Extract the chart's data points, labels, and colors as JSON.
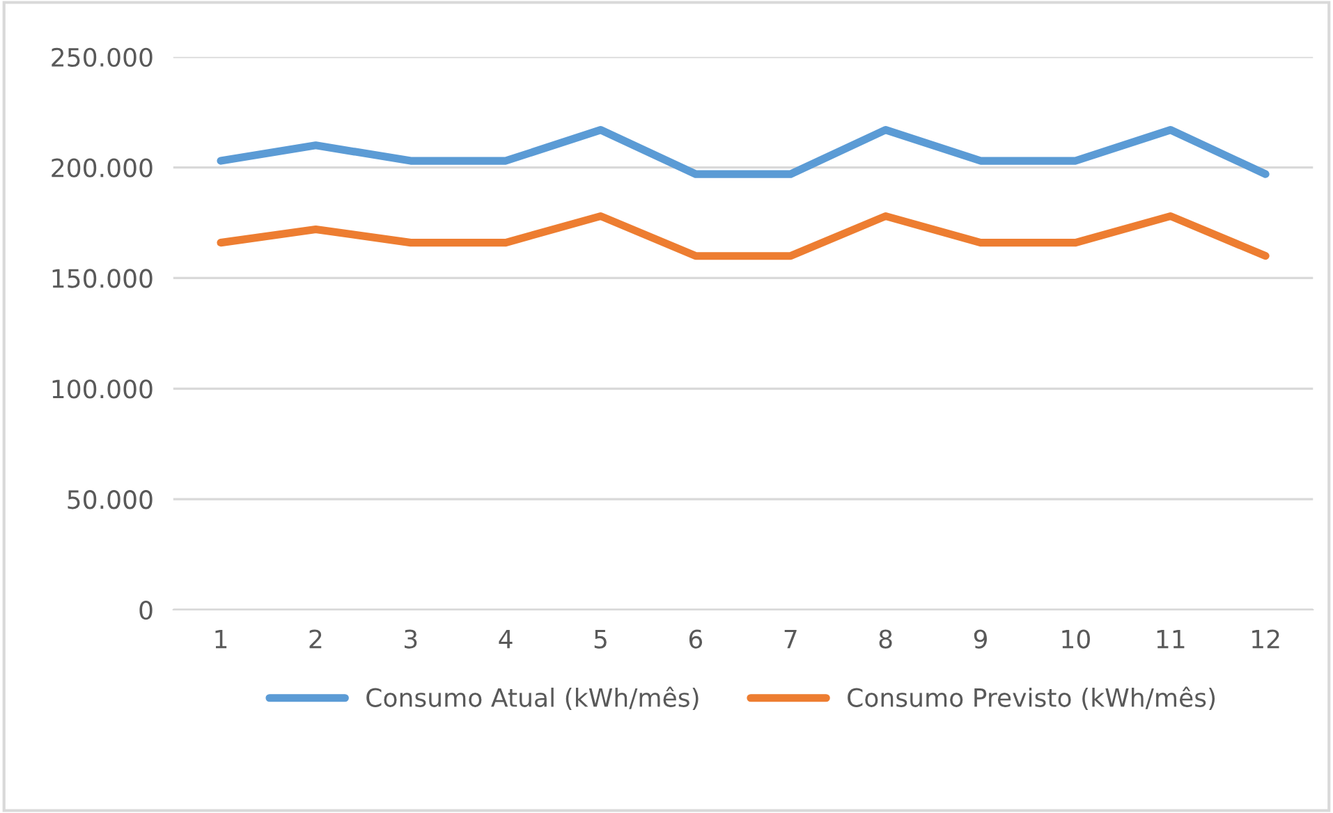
{
  "chart_data": {
    "type": "line",
    "categories": [
      "1",
      "2",
      "3",
      "4",
      "5",
      "6",
      "7",
      "8",
      "9",
      "10",
      "11",
      "12"
    ],
    "series": [
      {
        "name": "Consumo Atual (kWh/mês)",
        "color": "#5b9bd5",
        "values": [
          203000,
          210000,
          203000,
          203000,
          217000,
          197000,
          197000,
          217000,
          203000,
          203000,
          217000,
          197000
        ]
      },
      {
        "name": "Consumo Previsto (kWh/mês)",
        "color": "#ed7d31",
        "values": [
          166000,
          172000,
          166000,
          166000,
          178000,
          160000,
          160000,
          178000,
          166000,
          166000,
          178000,
          160000
        ]
      }
    ],
    "ylim": [
      0,
      250000
    ],
    "yticks": [
      0,
      {
        "value": 50000,
        "label": "50.000"
      },
      {
        "value": 100000,
        "label": "100.000"
      },
      {
        "value": 150000,
        "label": "150.000"
      },
      {
        "value": 200000,
        "label": "200.000"
      },
      {
        "value": 250000,
        "label": "250.000"
      }
    ],
    "grid": "y",
    "legend": "bottom",
    "marker": "none",
    "line_style": "solid"
  }
}
